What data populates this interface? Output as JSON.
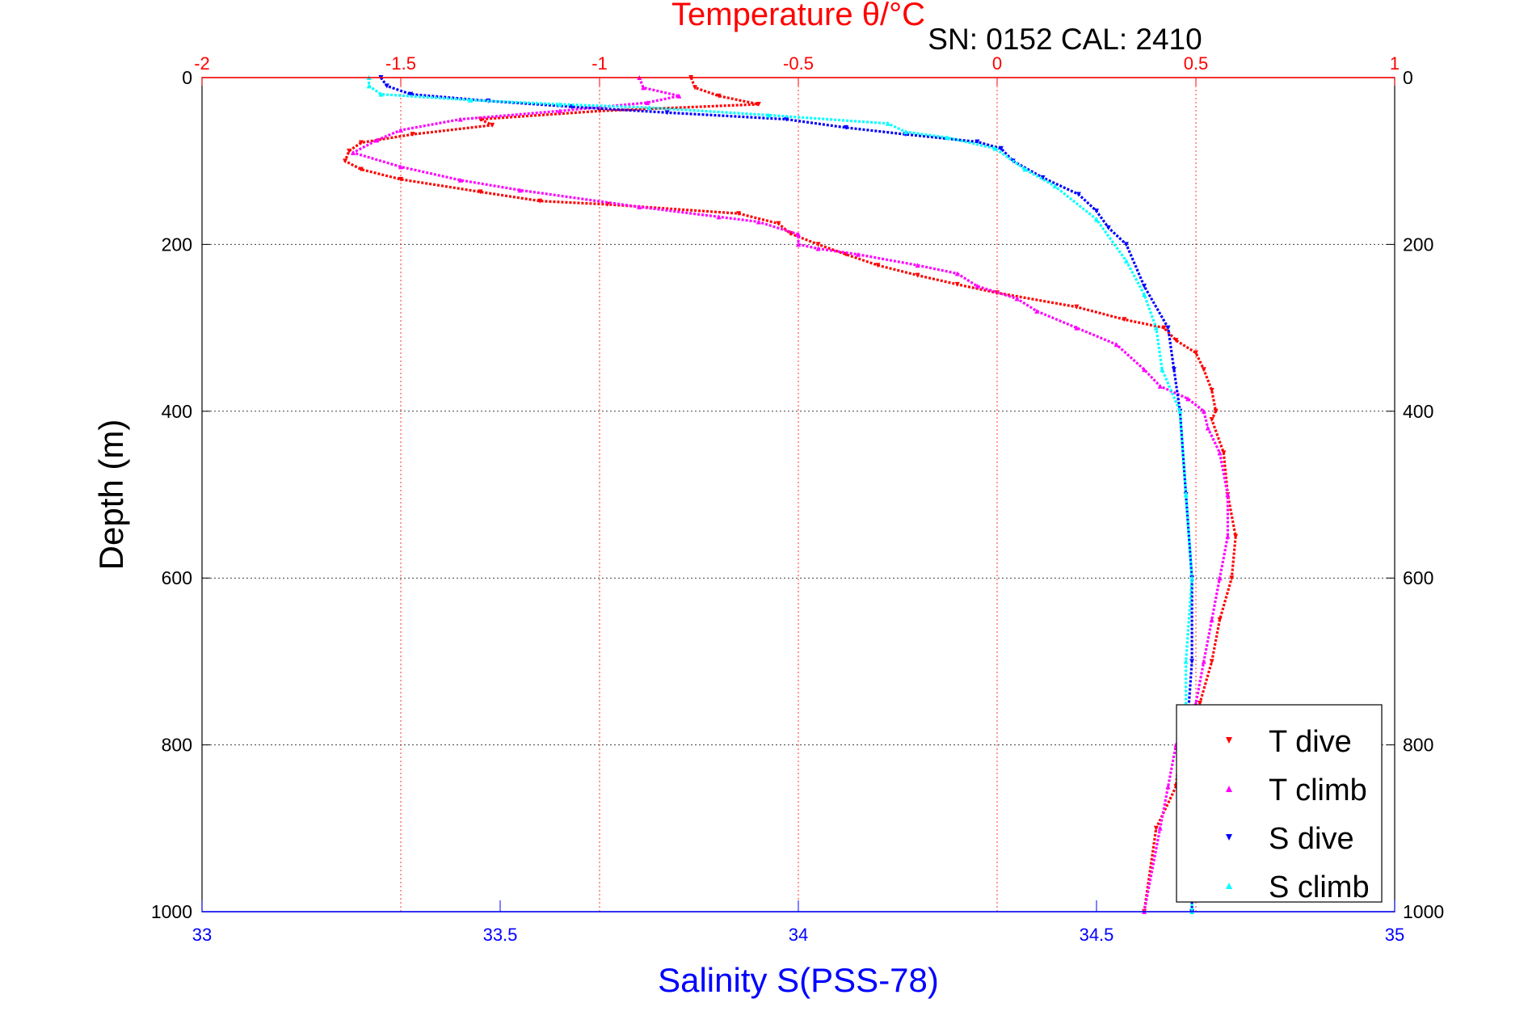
{
  "header": {
    "title": "Temperature θ/°C",
    "subtitle": "SN: 0152  CAL: 2410"
  },
  "colors": {
    "t_dive": "#ff0000",
    "t_climb": "#ff00ff",
    "s_dive": "#0000ff",
    "s_climb": "#00ffff",
    "temp_axis": "#ff0000",
    "sal_axis": "#0000ff",
    "frame": "#000000"
  },
  "chart_data": {
    "type": "scatter",
    "title": "Temperature θ/°C",
    "subtitle": "SN: 0152  CAL: 2410",
    "ylabel": "Depth (m)",
    "xlabel": "Salinity S(PSS-78)",
    "ylim": [
      1000,
      0
    ],
    "y_reversed": true,
    "y_ticks": [
      "0",
      "200",
      "400",
      "600",
      "800",
      "1000"
    ],
    "temp_axis": {
      "label": "Temperature θ/°C",
      "position": "top",
      "range": [
        -2,
        1
      ],
      "ticks": [
        "-2",
        "-1.5",
        "-1",
        "-0.5",
        "0",
        "0.5",
        "1"
      ]
    },
    "sal_axis": {
      "label": "Salinity S(PSS-78)",
      "position": "bottom",
      "range": [
        33,
        35
      ],
      "ticks": [
        "33",
        "33.5",
        "34",
        "34.5",
        "35"
      ]
    },
    "grid": true,
    "legend_position": "bottom-right",
    "series": [
      {
        "name": "T dive",
        "axis": "temperature",
        "marker": "triangle-down",
        "points": [
          [
            -0.77,
            0
          ],
          [
            -0.76,
            12
          ],
          [
            -0.7,
            22
          ],
          [
            -0.6,
            32
          ],
          [
            -1.0,
            40
          ],
          [
            -1.3,
            50
          ],
          [
            -1.27,
            57
          ],
          [
            -1.47,
            68
          ],
          [
            -1.6,
            78
          ],
          [
            -1.63,
            88
          ],
          [
            -1.64,
            100
          ],
          [
            -1.6,
            110
          ],
          [
            -1.5,
            122
          ],
          [
            -1.3,
            137
          ],
          [
            -1.15,
            148
          ],
          [
            -0.98,
            152
          ],
          [
            -0.65,
            163
          ],
          [
            -0.55,
            175
          ],
          [
            -0.52,
            187
          ],
          [
            -0.45,
            200
          ],
          [
            -0.38,
            212
          ],
          [
            -0.3,
            225
          ],
          [
            -0.2,
            237
          ],
          [
            -0.1,
            248
          ],
          [
            0.0,
            258
          ],
          [
            0.2,
            275
          ],
          [
            0.32,
            290
          ],
          [
            0.42,
            300
          ],
          [
            0.45,
            315
          ],
          [
            0.5,
            330
          ],
          [
            0.52,
            350
          ],
          [
            0.54,
            375
          ],
          [
            0.55,
            400
          ],
          [
            0.54,
            410
          ],
          [
            0.57,
            450
          ],
          [
            0.58,
            500
          ],
          [
            0.6,
            550
          ],
          [
            0.59,
            600
          ],
          [
            0.56,
            650
          ],
          [
            0.54,
            700
          ],
          [
            0.51,
            750
          ],
          [
            0.46,
            800
          ],
          [
            0.45,
            850
          ],
          [
            0.4,
            900
          ],
          [
            0.37,
            1000
          ]
        ]
      },
      {
        "name": "T climb",
        "axis": "temperature",
        "marker": "triangle-up",
        "points": [
          [
            -0.9,
            0
          ],
          [
            -0.89,
            12
          ],
          [
            -0.8,
            22
          ],
          [
            -0.88,
            30
          ],
          [
            -1.1,
            40
          ],
          [
            -1.35,
            50
          ],
          [
            -1.5,
            63
          ],
          [
            -1.56,
            75
          ],
          [
            -1.62,
            90
          ],
          [
            -1.5,
            107
          ],
          [
            -1.35,
            123
          ],
          [
            -1.2,
            135
          ],
          [
            -0.9,
            155
          ],
          [
            -0.7,
            167
          ],
          [
            -0.6,
            173
          ],
          [
            -0.5,
            188
          ],
          [
            -0.5,
            200
          ],
          [
            -0.45,
            205
          ],
          [
            -0.35,
            212
          ],
          [
            -0.2,
            225
          ],
          [
            -0.1,
            235
          ],
          [
            -0.05,
            250
          ],
          [
            0.05,
            265
          ],
          [
            0.1,
            280
          ],
          [
            0.2,
            300
          ],
          [
            0.3,
            320
          ],
          [
            0.37,
            350
          ],
          [
            0.41,
            370
          ],
          [
            0.48,
            385
          ],
          [
            0.52,
            400
          ],
          [
            0.53,
            420
          ],
          [
            0.56,
            450
          ],
          [
            0.58,
            500
          ],
          [
            0.58,
            550
          ],
          [
            0.56,
            600
          ],
          [
            0.54,
            650
          ],
          [
            0.52,
            700
          ],
          [
            0.5,
            750
          ],
          [
            0.45,
            800
          ],
          [
            0.43,
            850
          ],
          [
            0.41,
            900
          ],
          [
            0.37,
            1000
          ]
        ]
      },
      {
        "name": "S dive",
        "axis": "salinity",
        "marker": "triangle-down",
        "points": [
          [
            33.3,
            0
          ],
          [
            33.31,
            10
          ],
          [
            33.35,
            20
          ],
          [
            33.48,
            28
          ],
          [
            33.62,
            35
          ],
          [
            33.78,
            42
          ],
          [
            33.98,
            50
          ],
          [
            34.08,
            60
          ],
          [
            34.18,
            68
          ],
          [
            34.3,
            77
          ],
          [
            34.34,
            85
          ],
          [
            34.36,
            100
          ],
          [
            34.41,
            120
          ],
          [
            34.47,
            140
          ],
          [
            34.5,
            160
          ],
          [
            34.52,
            180
          ],
          [
            34.55,
            200
          ],
          [
            34.58,
            250
          ],
          [
            34.62,
            300
          ],
          [
            34.63,
            350
          ],
          [
            34.64,
            400
          ],
          [
            34.65,
            500
          ],
          [
            34.66,
            600
          ],
          [
            34.66,
            700
          ],
          [
            34.65,
            800
          ],
          [
            34.66,
            900
          ],
          [
            34.66,
            1000
          ]
        ]
      },
      {
        "name": "S climb",
        "axis": "salinity",
        "marker": "triangle-up",
        "points": [
          [
            33.28,
            0
          ],
          [
            33.28,
            10
          ],
          [
            33.3,
            20
          ],
          [
            33.45,
            27
          ],
          [
            33.6,
            32
          ],
          [
            33.75,
            36
          ],
          [
            33.95,
            45
          ],
          [
            34.15,
            55
          ],
          [
            34.18,
            65
          ],
          [
            34.25,
            72
          ],
          [
            34.33,
            85
          ],
          [
            34.38,
            110
          ],
          [
            34.43,
            130
          ],
          [
            34.5,
            170
          ],
          [
            34.55,
            220
          ],
          [
            34.58,
            260
          ],
          [
            34.6,
            300
          ],
          [
            34.61,
            350
          ],
          [
            34.64,
            400
          ],
          [
            34.65,
            500
          ],
          [
            34.66,
            600
          ],
          [
            34.65,
            700
          ],
          [
            34.65,
            800
          ],
          [
            34.66,
            900
          ],
          [
            34.66,
            1000
          ]
        ]
      }
    ]
  }
}
